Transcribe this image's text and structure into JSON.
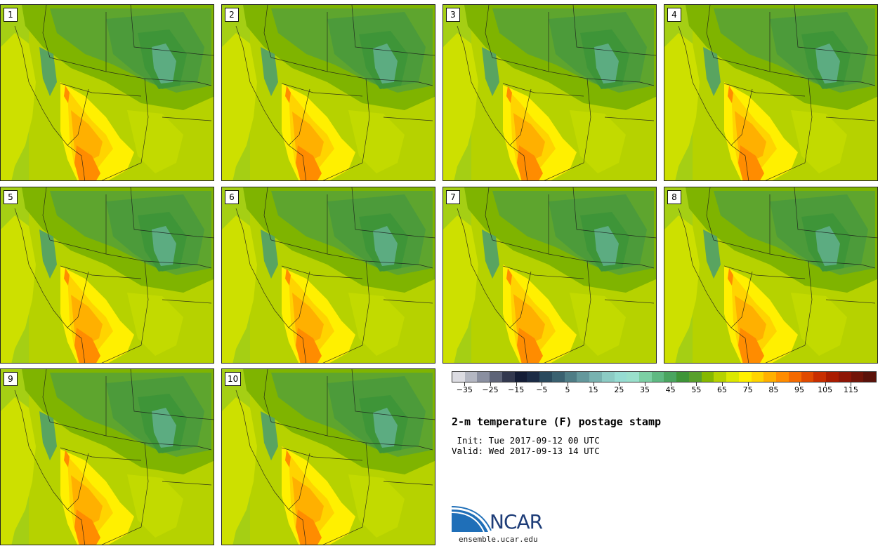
{
  "panels": [
    {
      "label": "1"
    },
    {
      "label": "2"
    },
    {
      "label": "3"
    },
    {
      "label": "4"
    },
    {
      "label": "5"
    },
    {
      "label": "6"
    },
    {
      "label": "7"
    },
    {
      "label": "8"
    },
    {
      "label": "9"
    },
    {
      "label": "10"
    }
  ],
  "colorbar": {
    "colors": [
      "#dcdce2",
      "#b4b7c2",
      "#8a8fa0",
      "#5e6478",
      "#33394f",
      "#141d36",
      "#1c2c46",
      "#2a4a5e",
      "#3a6170",
      "#4f7d86",
      "#64989c",
      "#78b2b0",
      "#8ccbc4",
      "#96dcd2",
      "#9ae0cc",
      "#7ccfa4",
      "#5fb982",
      "#4aa560",
      "#3e9538",
      "#58a02c",
      "#86b800",
      "#b6d200",
      "#dce800",
      "#fff000",
      "#ffd400",
      "#ffb000",
      "#ff8c00",
      "#f56a00",
      "#e04a00",
      "#c82e00",
      "#aa1c00",
      "#8e1606",
      "#721408",
      "#5a120a"
    ],
    "tick_labels": [
      "-35",
      "-25",
      "-15",
      "-5",
      "5",
      "15",
      "25",
      "35",
      "45",
      "55",
      "65",
      "75",
      "85",
      "95",
      "105",
      "115"
    ],
    "min": -40,
    "max": 125
  },
  "title": "2-m temperature (F) postage stamp",
  "init_line": " Init: Tue 2017-09-12 00 UTC",
  "valid_line": "Valid: Wed 2017-09-13 14 UTC",
  "logo": {
    "name": "NCAR",
    "url": "ensemble.ucar.edu"
  }
}
